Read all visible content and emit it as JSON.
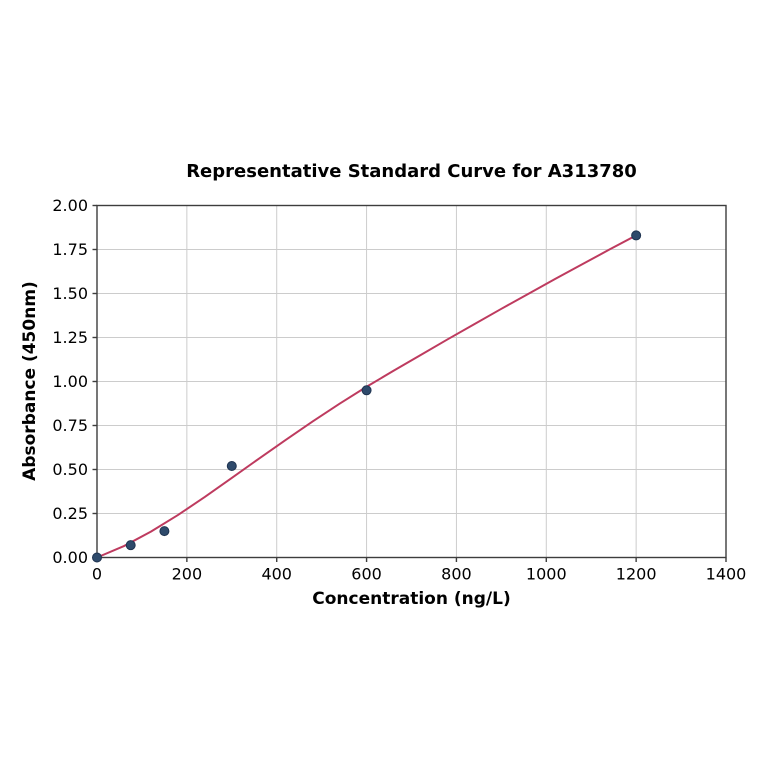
{
  "chart_data": {
    "type": "scatter",
    "title": "Representative Standard Curve for A313780",
    "xlabel": "Concentration (ng/L)",
    "ylabel": "Absorbance (450nm)",
    "xlim": [
      0,
      1400
    ],
    "ylim": [
      0,
      2
    ],
    "x_ticks": [
      0,
      200,
      400,
      600,
      800,
      1000,
      1200,
      1400
    ],
    "y_ticks": [
      0,
      0.25,
      0.5,
      0.75,
      1,
      1.25,
      1.5,
      1.75,
      2
    ],
    "y_tick_decimals": 2,
    "grid": true,
    "legend": "none",
    "points": [
      {
        "x": 0,
        "y": 0.0
      },
      {
        "x": 75,
        "y": 0.07
      },
      {
        "x": 150,
        "y": 0.15
      },
      {
        "x": 300,
        "y": 0.52
      },
      {
        "x": 600,
        "y": 0.95
      },
      {
        "x": 1200,
        "y": 1.83
      }
    ],
    "fit_curve": {
      "x": [
        0,
        60,
        120,
        180,
        240,
        300,
        360,
        420,
        480,
        540,
        600,
        660,
        720,
        780,
        840,
        900,
        960,
        1020,
        1080,
        1140,
        1200
      ],
      "y": [
        0,
        0.065,
        0.147,
        0.241,
        0.344,
        0.452,
        0.561,
        0.668,
        0.773,
        0.874,
        0.97,
        1.061,
        1.15,
        1.239,
        1.326,
        1.413,
        1.498,
        1.583,
        1.666,
        1.749,
        1.83
      ]
    },
    "colors": {
      "curve": "#be3b5f",
      "marker": "#2e4a6b",
      "marker_edge": "#1e3350",
      "grid": "#cccccc",
      "spine": "#3d3d3d",
      "text": "#000000"
    }
  }
}
